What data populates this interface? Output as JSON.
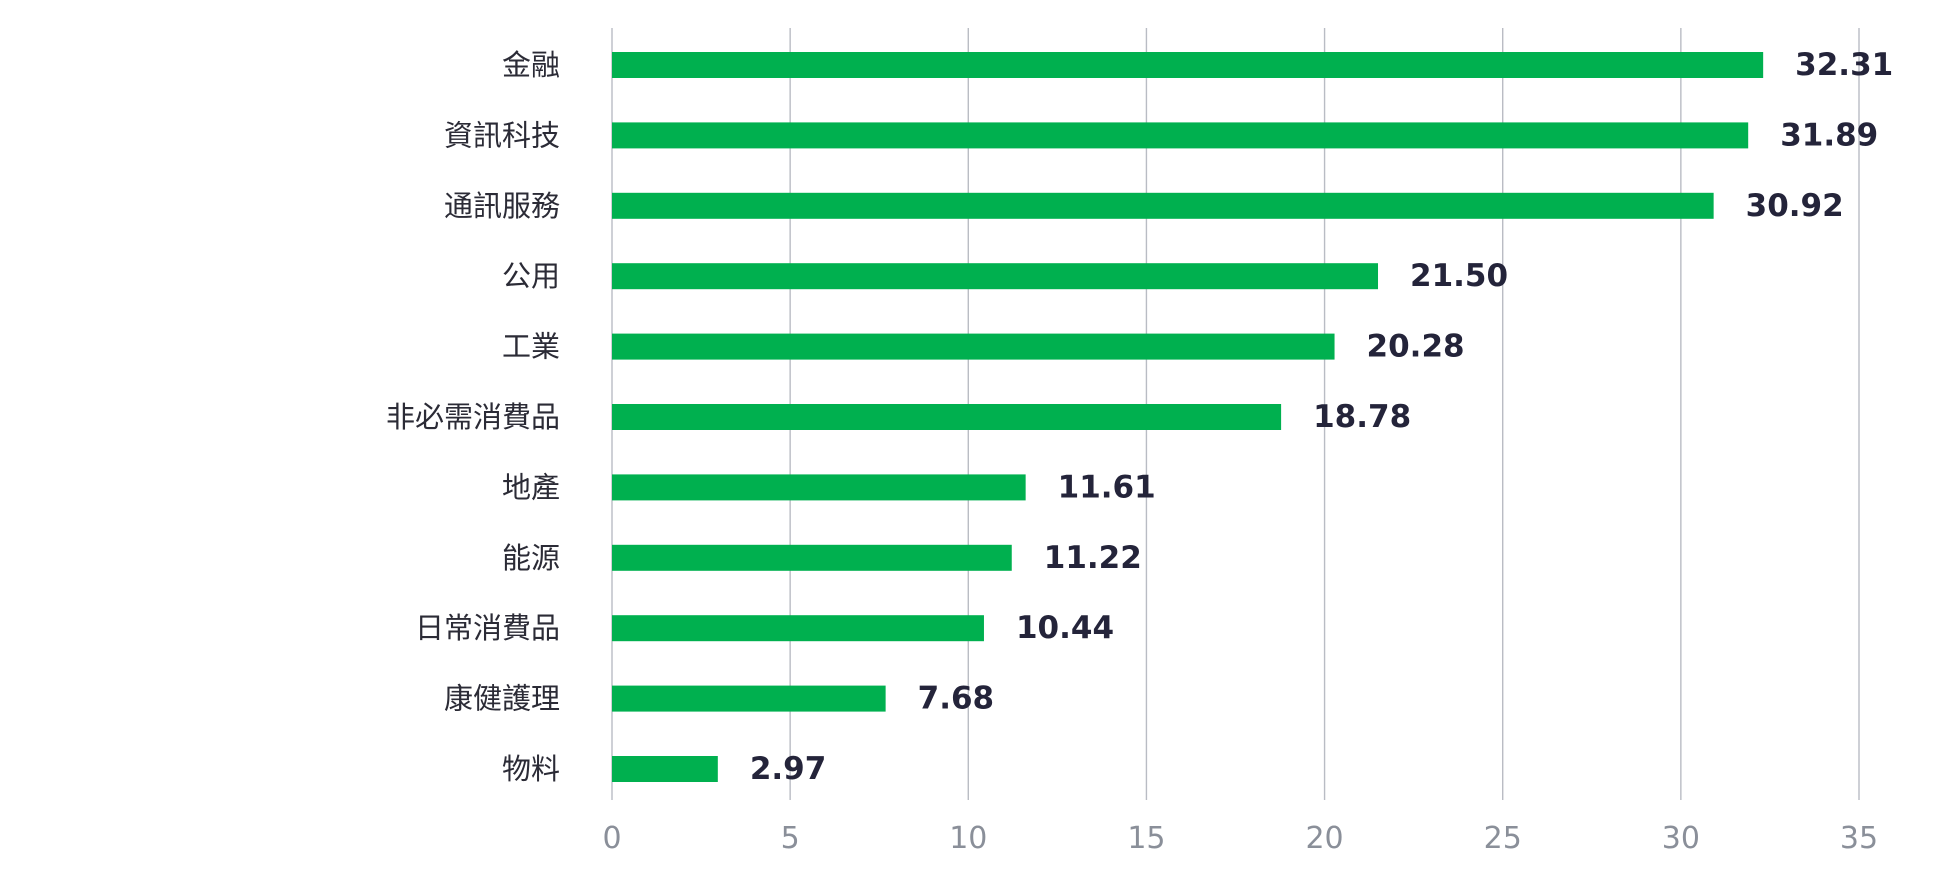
{
  "chart_data": {
    "type": "bar",
    "orientation": "horizontal",
    "title": "",
    "xlabel": "",
    "ylabel": "",
    "categories": [
      "金融",
      "資訊科技",
      "通訊服務",
      "公用",
      "工業",
      "非必需消費品",
      "地產",
      "能源",
      "日常消費品",
      "康健護理",
      "物料"
    ],
    "values": [
      32.31,
      31.89,
      30.92,
      21.5,
      20.28,
      18.78,
      11.61,
      11.22,
      10.44,
      7.68,
      2.97
    ],
    "value_labels": [
      "32.31",
      "31.89",
      "30.92",
      "21.50",
      "20.28",
      "18.78",
      "11.61",
      "11.22",
      "10.44",
      "7.68",
      "2.97"
    ],
    "xlim": [
      0,
      35
    ],
    "x_ticks": [
      "0",
      "5",
      "10",
      "15",
      "20",
      "25",
      "30",
      "35"
    ],
    "grid": "vertical",
    "legend": "none",
    "colors": {
      "bar": "#00b04f",
      "grid": "#b9bcc4",
      "value_text": "#24243a",
      "category_text": "#2b2b36",
      "tick_text": "#8a8f99"
    }
  }
}
